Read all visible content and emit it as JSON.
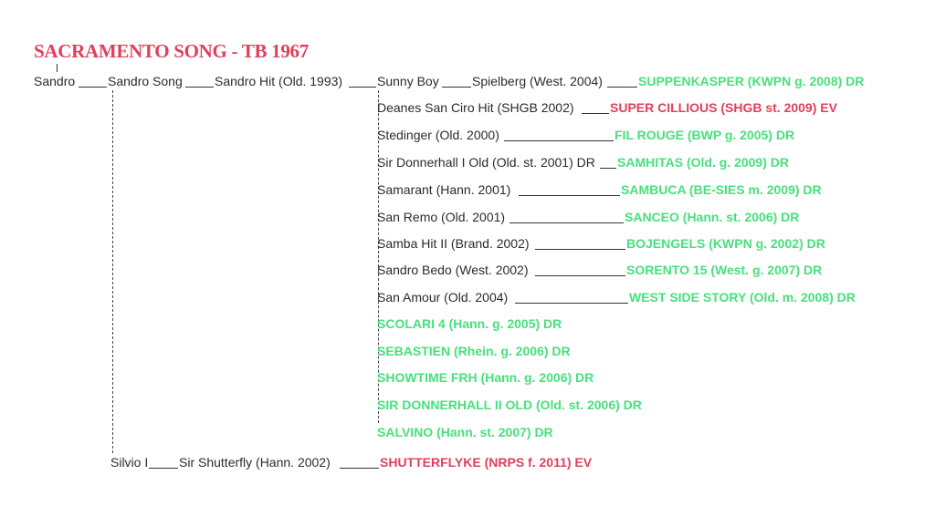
{
  "title": "SACRAMENTO SONG - TB 1967",
  "nodes": {
    "sandro": "Sandro",
    "sandro_song": "Sandro Song",
    "sandro_hit": "Sandro Hit (Old. 1993)",
    "sunny_boy": "Sunny Boy",
    "spielberg": "Spielberg (West. 2004)",
    "suppenkasper": "SUPPENKASPER (KWPN g. 2008) DR",
    "deanes": "Deanes San Ciro Hit (SHGB 2002)",
    "super_cillious": "SUPER CILLIOUS (SHGB st. 2009) EV",
    "stedinger": "Stedinger (Old. 2000)",
    "fil_rouge": "FIL ROUGE (BWP g. 2005) DR",
    "sir_donnerhall_i": "Sir Donnerhall I Old (Old. st. 2001) DR",
    "samhitas": "SAMHITAS (Old. g. 2009) DR",
    "samarant": "Samarant (Hann. 2001)",
    "sambuca": "SAMBUCA (BE-SIES m. 2009) DR",
    "san_remo": "San Remo (Old. 2001)",
    "sanceo": "SANCEO (Hann. st. 2006) DR",
    "samba_hit": "Samba Hit II (Brand. 2002)",
    "bojengels": "BOJENGELS (KWPN g. 2002) DR",
    "sandro_bedo": "Sandro Bedo (West. 2002)",
    "sorento": "SORENTO 15 (West. g. 2007) DR",
    "san_amour": "San Amour (Old. 2004)",
    "west_side_story": "WEST SIDE STORY (Old. m. 2008) DR",
    "scolari": "SCOLARI 4 (Hann. g. 2005) DR",
    "sebastien": "SEBASTIEN (Rhein. g. 2006) DR",
    "showtime": "SHOWTIME FRH (Hann. g. 2006) DR",
    "sir_donnerhall_ii": "SIR DONNERHALL II OLD (Old. st. 2006) DR",
    "salvino": "SALVINO (Hann. st. 2007) DR",
    "silvio": "Silvio I",
    "sir_shutterfly": "Sir Shutterfly (Hann. 2002)",
    "shutterflyke": "SHUTTERFLYKE (NRPS f. 2011) EV"
  },
  "colors": {
    "title": "#e0405a",
    "competition_dressage": "#48e07c",
    "competition_eventing": "#e0405a",
    "text": "#2b2b2b"
  }
}
